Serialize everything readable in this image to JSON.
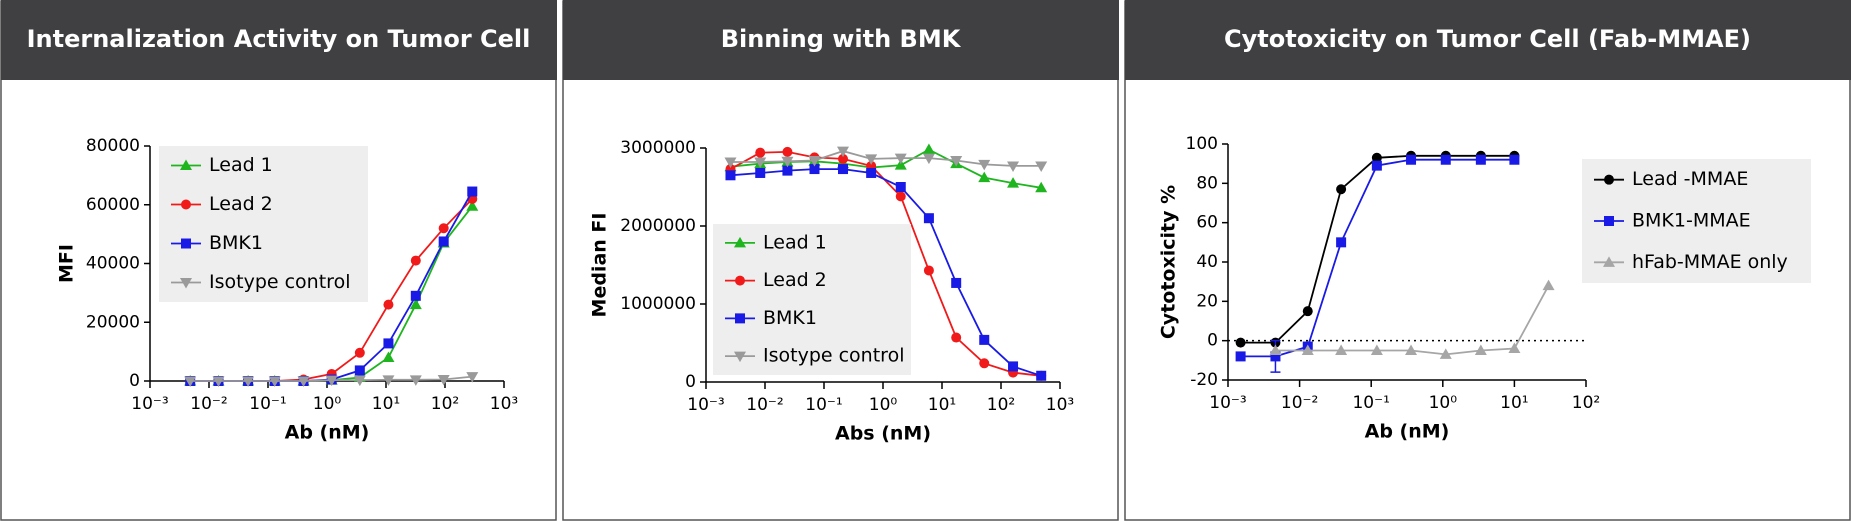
{
  "chart_data": [
    {
      "type": "line",
      "title": "Internalization Activity on Tumor Cell",
      "xlabel": "Ab (nM)",
      "ylabel": "MFI",
      "xscale": "log",
      "xlim": [
        0.001,
        1000
      ],
      "xticks": [
        {
          "value": 0.001,
          "label": "10⁻³"
        },
        {
          "value": 0.01,
          "label": "10⁻²"
        },
        {
          "value": 0.1,
          "label": "10⁻¹"
        },
        {
          "value": 1,
          "label": "10⁰"
        },
        {
          "value": 10,
          "label": "10¹"
        },
        {
          "value": 100,
          "label": "10²"
        },
        {
          "value": 1000,
          "label": "10³"
        }
      ],
      "ylim": [
        0,
        80000
      ],
      "yticks": [
        0,
        20000,
        40000,
        60000,
        80000
      ],
      "legend": "upper left",
      "x": [
        0.0048,
        0.0145,
        0.046,
        0.13,
        0.4,
        1.2,
        3.6,
        11,
        32,
        95,
        290
      ],
      "series": [
        {
          "name": "Lead 1",
          "color": "#1fb51f",
          "marker": "triangle-up",
          "values": [
            0,
            0,
            0,
            0,
            0,
            300,
            1200,
            8000,
            26000,
            47000,
            59500
          ]
        },
        {
          "name": "Lead 2",
          "color": "#f01a1a",
          "marker": "circle",
          "values": [
            0,
            0,
            0,
            0,
            500,
            2400,
            9600,
            26000,
            41000,
            52000,
            62000
          ]
        },
        {
          "name": "BMK1",
          "color": "#1a1ae6",
          "marker": "square",
          "values": [
            0,
            0,
            0,
            0,
            0,
            500,
            3600,
            12800,
            29000,
            47500,
            64500
          ]
        },
        {
          "name": "Isotype control",
          "color": "#9a9a9a",
          "marker": "triangle-down",
          "values": [
            0,
            0,
            0,
            0,
            0,
            300,
            300,
            400,
            400,
            500,
            1500
          ]
        }
      ]
    },
    {
      "type": "line",
      "title": "Binning with BMK",
      "xlabel": "Abs (nM)",
      "ylabel": "Median FI",
      "xscale": "log",
      "xlim": [
        0.001,
        1000
      ],
      "xticks": [
        {
          "value": 0.001,
          "label": "10⁻³"
        },
        {
          "value": 0.01,
          "label": "10⁻²"
        },
        {
          "value": 0.1,
          "label": "10⁻¹"
        },
        {
          "value": 1,
          "label": "10⁰"
        },
        {
          "value": 10,
          "label": "10¹"
        },
        {
          "value": 100,
          "label": "10²"
        },
        {
          "value": 1000,
          "label": "10³"
        }
      ],
      "ylim": [
        0,
        3000000
      ],
      "yticks": [
        0,
        1000000,
        2000000,
        3000000
      ],
      "legend": "lower left",
      "x": [
        0.0026,
        0.0083,
        0.024,
        0.069,
        0.21,
        0.63,
        2,
        6,
        17.4,
        52,
        160,
        480
      ],
      "series": [
        {
          "name": "Lead 1",
          "color": "#1fb51f",
          "marker": "triangle-up",
          "values": [
            2760000,
            2800000,
            2820000,
            2830000,
            2800000,
            2750000,
            2780000,
            2980000,
            2800000,
            2620000,
            2550000,
            2490000
          ]
        },
        {
          "name": "Lead 2",
          "color": "#f01a1a",
          "marker": "circle",
          "values": [
            2730000,
            2940000,
            2950000,
            2880000,
            2860000,
            2770000,
            2380000,
            1430000,
            570000,
            240000,
            120000,
            80000
          ]
        },
        {
          "name": "BMK1",
          "color": "#1a1ae6",
          "marker": "square",
          "values": [
            2650000,
            2680000,
            2710000,
            2730000,
            2730000,
            2680000,
            2500000,
            2100000,
            1270000,
            540000,
            200000,
            80000
          ]
        },
        {
          "name": "Isotype control",
          "color": "#9a9a9a",
          "marker": "triangle-down",
          "values": [
            2820000,
            2820000,
            2830000,
            2840000,
            2960000,
            2860000,
            2870000,
            2870000,
            2840000,
            2790000,
            2770000,
            2770000
          ]
        }
      ]
    },
    {
      "type": "line",
      "title": "Cytotoxicity on Tumor Cell (Fab-MMAE)",
      "xlabel": "Ab (nM)",
      "ylabel": "Cytotoxicity %",
      "xscale": "log",
      "xlim": [
        0.001,
        100
      ],
      "xticks": [
        {
          "value": 0.001,
          "label": "10⁻³"
        },
        {
          "value": 0.01,
          "label": "10⁻²"
        },
        {
          "value": 0.1,
          "label": "10⁻¹"
        },
        {
          "value": 1,
          "label": "10⁰"
        },
        {
          "value": 10,
          "label": "10¹"
        },
        {
          "value": 100,
          "label": "10²"
        }
      ],
      "ylim": [
        -20,
        100
      ],
      "yticks": [
        -20,
        0,
        20,
        40,
        60,
        80,
        100
      ],
      "legend": "right",
      "hline": 0,
      "x": [
        0.0015,
        0.0046,
        0.013,
        0.038,
        0.12,
        0.36,
        1.1,
        3.4,
        10,
        30
      ],
      "series": [
        {
          "name": "Lead -MMAE",
          "color": "#000000",
          "marker": "circle",
          "values": [
            -1,
            -1,
            15,
            77,
            93,
            94,
            94,
            94,
            94,
            null
          ]
        },
        {
          "name": "BMK1-MMAE",
          "color": "#1a1ae6",
          "marker": "square",
          "values": [
            -8,
            -8,
            -3,
            50,
            89,
            92,
            92,
            92,
            92,
            null
          ],
          "errors": [
            null,
            8,
            null,
            null,
            null,
            null,
            null,
            null,
            null,
            null
          ]
        },
        {
          "name": "hFab-MMAE only",
          "color": "#a6a6a6",
          "marker": "triangle-up",
          "values": [
            null,
            -5,
            -5,
            -5,
            -5,
            -5,
            -7,
            -5,
            -4,
            28
          ]
        }
      ]
    }
  ]
}
